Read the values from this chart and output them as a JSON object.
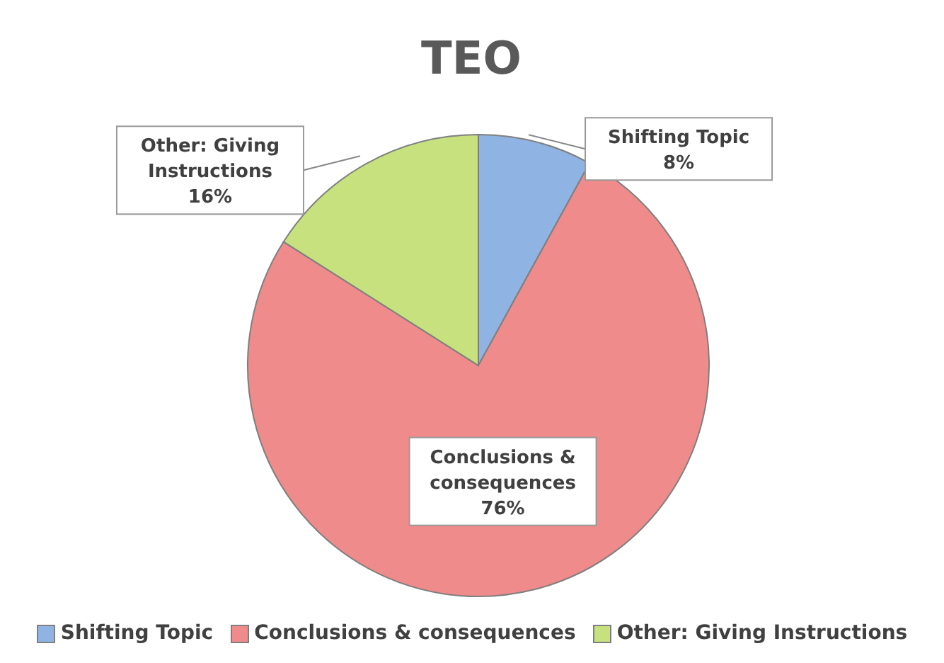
{
  "chart_data": {
    "type": "pie",
    "title": "TEO",
    "categories": [
      "Shifting Topic",
      "Conclusions & consequences",
      "Other: Giving Instructions"
    ],
    "values": [
      8,
      76,
      16
    ],
    "colors": [
      "#8fb4e3",
      "#f08b8b",
      "#c6e17e"
    ],
    "value_labels": [
      "8%",
      "76%",
      "16%"
    ],
    "legend": "bottom"
  }
}
